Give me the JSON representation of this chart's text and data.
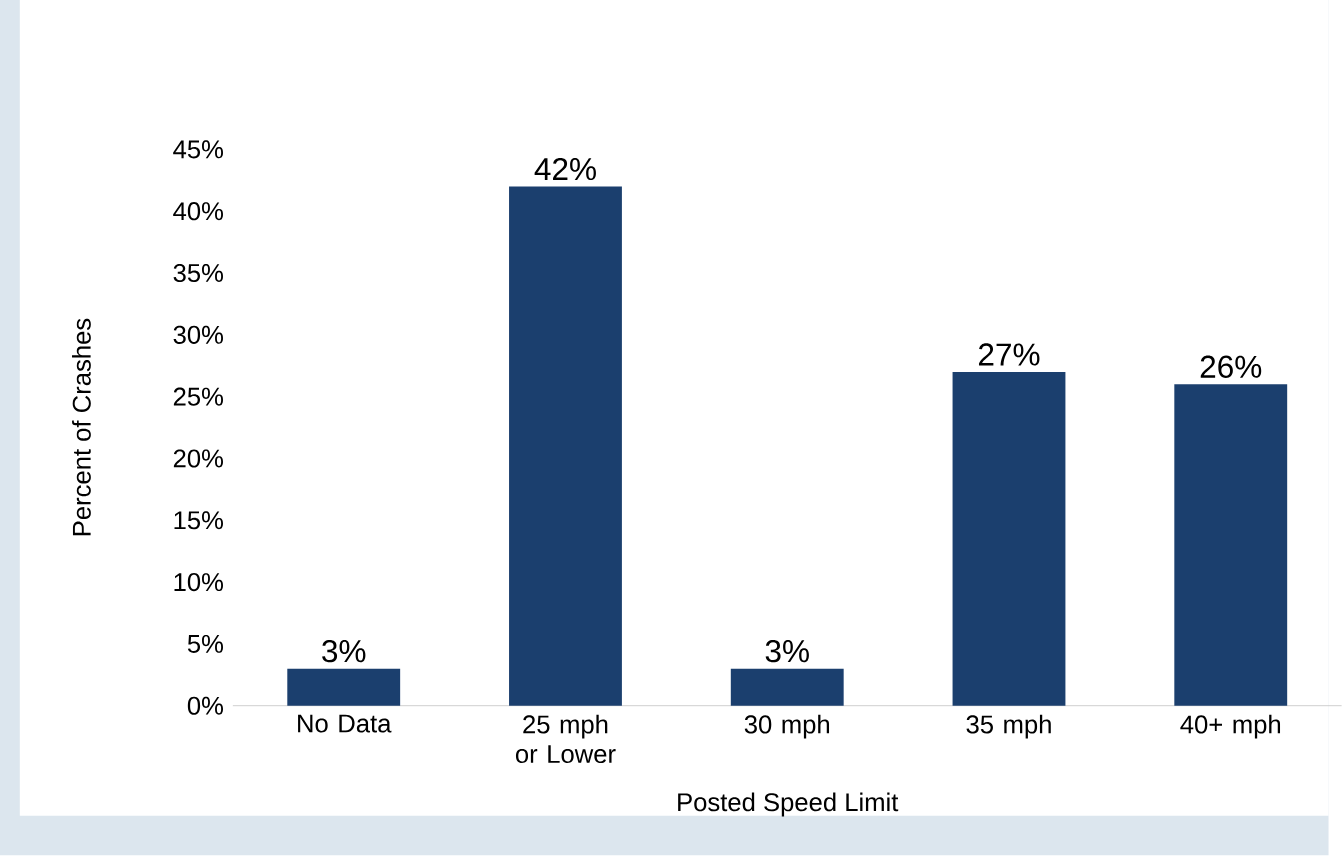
{
  "chart_data": {
    "type": "bar",
    "xlabel": "Posted Speed Limit",
    "ylabel": "Percent of Crashes",
    "categories": [
      "No Data",
      "25 mph or Lower",
      "30 mph",
      "35 mph",
      "40+ mph"
    ],
    "values": [
      3,
      42,
      3,
      27,
      26
    ],
    "value_labels": [
      "3%",
      "42%",
      "3%",
      "27%",
      "26%"
    ],
    "color": "#1b3f6e",
    "ylim": [
      0,
      45
    ],
    "yticks": [
      {
        "value": 0,
        "label": "0%"
      },
      {
        "value": 5,
        "label": "5%"
      },
      {
        "value": 10,
        "label": "10%"
      },
      {
        "value": 15,
        "label": "15%"
      },
      {
        "value": 20,
        "label": "20%"
      },
      {
        "value": 25,
        "label": "25%"
      },
      {
        "value": 30,
        "label": "30%"
      },
      {
        "value": 35,
        "label": "35%"
      },
      {
        "value": 40,
        "label": "40%"
      },
      {
        "value": 45,
        "label": "45%"
      }
    ]
  }
}
